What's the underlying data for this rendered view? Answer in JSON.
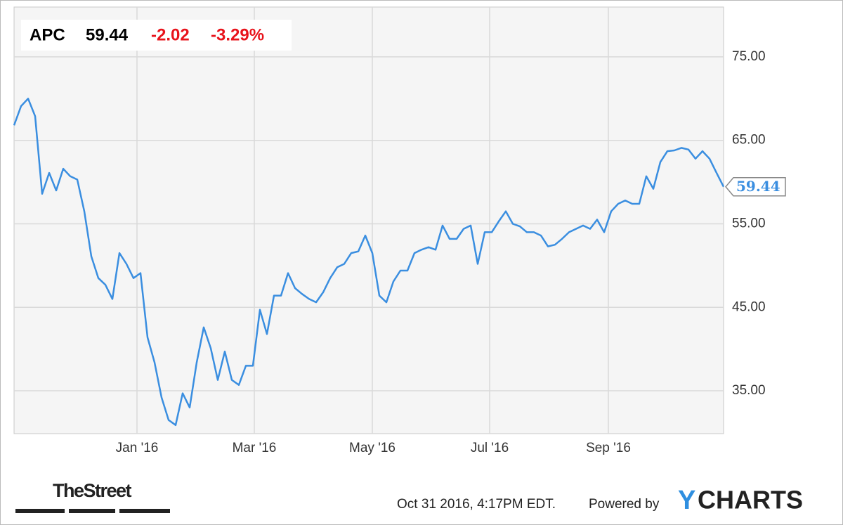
{
  "chart_data": {
    "type": "line",
    "header": {
      "ticker": "APC",
      "price": "59.44",
      "change": "-2.02",
      "change_pct": "-3.29%"
    },
    "color": "#3a8ee0",
    "values": [
      66.8,
      69.1,
      70.0,
      67.9,
      58.6,
      61.1,
      59.0,
      61.6,
      60.7,
      60.3,
      56.5,
      51.1,
      48.5,
      47.7,
      46.0,
      51.5,
      50.2,
      48.5,
      49.1,
      41.4,
      38.4,
      34.2,
      31.5,
      30.9,
      34.7,
      33.0,
      38.4,
      42.6,
      40.1,
      36.3,
      39.7,
      36.3,
      35.7,
      38.0,
      38.0,
      44.7,
      41.8,
      46.4,
      46.4,
      49.1,
      47.3,
      46.6,
      46.0,
      45.6,
      46.8,
      48.5,
      49.8,
      50.2,
      51.5,
      51.7,
      53.6,
      51.5,
      46.4,
      45.6,
      48.1,
      49.4,
      49.4,
      51.5,
      51.9,
      52.2,
      51.9,
      54.8,
      53.2,
      53.2,
      54.4,
      54.8,
      50.2,
      54.0,
      54.0,
      55.3,
      56.5,
      55.0,
      54.7,
      54.0,
      54.0,
      53.6,
      52.3,
      52.5,
      53.2,
      54.0,
      54.4,
      54.8,
      54.4,
      55.5,
      54.0,
      56.5,
      57.4,
      57.8,
      57.4,
      57.4,
      60.7,
      59.2,
      62.4,
      63.7,
      63.8,
      64.1,
      63.9,
      62.8,
      63.7,
      62.8,
      61.1,
      59.44
    ],
    "xlim": [
      0,
      101
    ],
    "xticks": [
      {
        "value": 17.5,
        "label": "Jan '16"
      },
      {
        "value": 34.2,
        "label": "Mar '16"
      },
      {
        "value": 51,
        "label": "May '16"
      },
      {
        "value": 67.7,
        "label": "Jul '16"
      },
      {
        "value": 84.6,
        "label": "Sep '16"
      }
    ],
    "ylim": [
      29.87,
      80.97
    ],
    "yticks": [
      {
        "value": 35,
        "label": "35.00"
      },
      {
        "value": 45,
        "label": "45.00"
      },
      {
        "value": 55,
        "label": "55.00"
      },
      {
        "value": 65,
        "label": "65.00"
      },
      {
        "value": 75,
        "label": "75.00"
      }
    ],
    "grid": true,
    "footer": {
      "brand": "TheStreet",
      "timestamp": "Oct 31 2016, 4:17PM EDT.",
      "powered": "Powered by",
      "logo_y": "Y",
      "logo_rest": "CHARTS"
    }
  }
}
